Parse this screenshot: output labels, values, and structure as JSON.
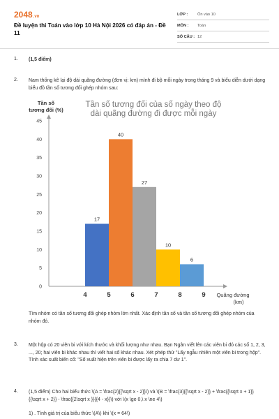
{
  "header": {
    "logo": "2048",
    "logo_tld": ".vn",
    "title": "Đề luyện thi Toán vào lớp 10 Hà Nội 2026 có đáp án - Đề 11",
    "meta": [
      {
        "label": "LỚP :",
        "value": "Ôn vào 10"
      },
      {
        "label": "MÔN :",
        "value": "Toán"
      },
      {
        "label": "SỐ CÂU :",
        "value": "12"
      }
    ]
  },
  "questions": [
    {
      "num": "1.",
      "text": "(1,5 điểm)"
    },
    {
      "num": "2.",
      "text": "Nam thống kê lại độ dài quãng đường (đơn vị: km) mình đi bộ mỗi ngày trong tháng 9 và biểu diễn dưới dạng biểu đồ tần số tương đối ghép nhóm sau:",
      "after_chart": "Tìm nhóm có tần số tương đối ghép nhóm lớn nhất. Xác định  tần số và tần số tương đối ghép nhóm của nhóm đó."
    },
    {
      "num": "3.",
      "text": "Một hộp có 20 viên bi với kích thước và khối lượng như nhau. Bạn Ngân viết lên các viên bi đó các số 1, 2, 3, ..., 20; hai viên bi khác nhau thì viết hai số khác nhau. Xét phép thử \"Lấy ngẫu nhiên một viên bi trong hộp\". Tính xác suất biến cố: \"Số xuất hiện trên viên bi được lấy ra chia 7 dư 1\"."
    },
    {
      "num": "4.",
      "text": "(1,5 điểm) Cho hai biểu thức \\(A = \\frac{2}{{\\sqrt x  - 2}}\\) và \\(B = \\frac{3}{{\\sqrt x  - 2}} + \\frac{{\\sqrt x  + 1}}{{\\sqrt x  + 2}} - \\frac{{2\\sqrt x }}{{4 - x}}\\) với \\(x \\ge 0,\\ x \\ne 4\\)",
      "sub": "1) . Tính giá trị của biểu thức \\(A\\) khi \\(x = 64\\)"
    }
  ],
  "chart_data": {
    "type": "bar",
    "title_line1": "Tần số tương đối của số ngày theo độ",
    "title_line2": "dài quãng đường đi được mỗi ngày",
    "ylabel_line1": "Tần số",
    "ylabel_line2": "tương đối (%)",
    "xlabel_line1": "Quãng đường",
    "xlabel_line2": "(km)",
    "x_ticks": [
      4,
      5,
      6,
      7,
      8,
      9
    ],
    "y_ticks": [
      0,
      5,
      10,
      15,
      20,
      25,
      30,
      35,
      40,
      45
    ],
    "ylim": [
      0,
      45
    ],
    "bars": [
      {
        "from": 4,
        "to": 5,
        "value": 17,
        "color": "#4472c4"
      },
      {
        "from": 5,
        "to": 6,
        "value": 40,
        "color": "#ed7d31"
      },
      {
        "from": 6,
        "to": 7,
        "value": 27,
        "color": "#a5a5a5"
      },
      {
        "from": 7,
        "to": 8,
        "value": 10,
        "color": "#ffc000"
      },
      {
        "from": 8,
        "to": 9,
        "value": 6,
        "color": "#5b9bd5"
      }
    ]
  }
}
